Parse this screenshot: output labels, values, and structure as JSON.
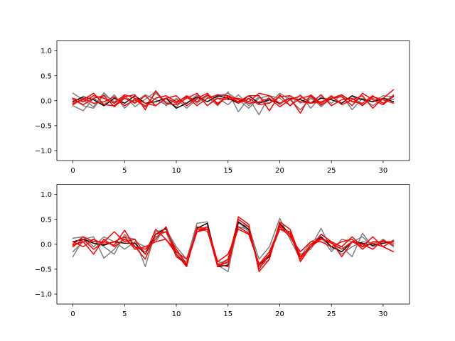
{
  "chart_data": [
    {
      "type": "line",
      "title": "",
      "xlabel": "",
      "ylabel": "",
      "xlim": [
        -1.55,
        32.55
      ],
      "ylim": [
        -1.2,
        1.2
      ],
      "xticks": [
        0,
        5,
        10,
        15,
        20,
        25,
        30
      ],
      "yticks": [
        -1.0,
        -0.5,
        0.0,
        0.5,
        1.0
      ],
      "ytick_labels": [
        "−1.0",
        "−0.5",
        "0.0",
        "0.5",
        "1.0"
      ],
      "grid": false,
      "x": [
        0,
        1,
        2,
        3,
        4,
        5,
        6,
        7,
        8,
        9,
        10,
        11,
        12,
        13,
        14,
        15,
        16,
        17,
        18,
        19,
        20,
        21,
        22,
        23,
        24,
        25,
        26,
        27,
        28,
        29,
        30,
        31
      ],
      "series": [
        {
          "color": "#808080",
          "values": [
            0.15,
            0.02,
            -0.12,
            0.16,
            -0.05,
            0.08,
            -0.03,
            0.12,
            0.02,
            -0.08,
            0.05,
            -0.15,
            0.03,
            0.08,
            -0.1,
            0.18,
            -0.22,
            0.05,
            -0.28,
            0.1,
            0.05,
            -0.1,
            0.12,
            -0.15,
            0.08,
            -0.05,
            0.12,
            -0.18,
            0.05,
            -0.02,
            0.1,
            0.08
          ]
        },
        {
          "color": "#808080",
          "values": [
            -0.1,
            -0.2,
            0.05,
            -0.08,
            0.12,
            -0.15,
            0.05,
            -0.1,
            0.15,
            -0.02,
            -0.12,
            0.08,
            -0.05,
            0.1,
            0.05,
            -0.08,
            0.12,
            -0.1,
            0.08,
            -0.05,
            0.15,
            0.02,
            -0.18,
            0.05,
            -0.1,
            0.08,
            -0.05,
            0.1,
            -0.08,
            0.05,
            -0.05,
            0.12
          ]
        },
        {
          "color": "#808080",
          "values": [
            0.05,
            -0.1,
            -0.15,
            0.12,
            -0.02,
            0.1,
            -0.12,
            0.03,
            0.18,
            -0.1,
            0.02,
            -0.05,
            0.12,
            -0.1,
            0.08,
            0.15,
            0.02,
            -0.15,
            0.05,
            0.1,
            -0.08,
            0.1,
            -0.05,
            0.08,
            -0.12,
            0.05,
            0.1,
            -0.02,
            0.05,
            -0.1,
            0.05,
            0.02
          ]
        },
        {
          "color": "#000000",
          "values": [
            -0.02,
            0.08,
            0.02,
            -0.1,
            0.05,
            -0.05,
            0.1,
            -0.05,
            -0.02,
            0.05,
            -0.15,
            -0.05,
            0.08,
            -0.02,
            0.1,
            0.05,
            -0.05,
            0.1,
            -0.05,
            0.02,
            -0.05,
            0.05,
            0.02,
            -0.05,
            0.05,
            0.02,
            -0.05,
            0.1,
            0.02,
            -0.02,
            0.05,
            -0.02
          ]
        },
        {
          "color": "#ff0000",
          "values": [
            -0.05,
            0.02,
            0.15,
            -0.08,
            -0.1,
            0.08,
            0.12,
            -0.18,
            0.2,
            -0.05,
            -0.08,
            0.05,
            0.15,
            -0.1,
            0.05,
            0.02,
            0.05,
            -0.02,
            0.15,
            0.1,
            -0.05,
            0.05,
            -0.25,
            0.12,
            -0.05,
            0.1,
            -0.08,
            0.02,
            0.1,
            -0.15,
            0.05,
            0.22
          ]
        },
        {
          "color": "#ff0000",
          "values": [
            0.02,
            -0.08,
            0.05,
            0.1,
            -0.12,
            0.05,
            -0.05,
            0.1,
            -0.1,
            0.05,
            -0.05,
            0.1,
            -0.02,
            0.12,
            -0.05,
            0.08,
            -0.02,
            0.1,
            0.1,
            -0.2,
            0.12,
            -0.1,
            0.05,
            0.1,
            -0.08,
            0.05,
            0.12,
            -0.02,
            -0.05,
            0.1,
            -0.05,
            0.08
          ]
        },
        {
          "color": "#ff0000",
          "values": [
            -0.08,
            0.05,
            -0.05,
            -0.02,
            0.08,
            -0.1,
            0.02,
            -0.12,
            0.05,
            0.1,
            -0.02,
            0.08,
            -0.1,
            0.05,
            0.12,
            0.1,
            -0.05,
            0.05,
            -0.08,
            -0.05,
            0.08,
            0.1,
            -0.02,
            -0.05,
            0.12,
            -0.1,
            0.02,
            0.05,
            -0.1,
            0.08,
            0.02,
            -0.05
          ]
        },
        {
          "color": "#ff0000",
          "values": [
            0.05,
            -0.02,
            0.1,
            0.05,
            -0.05,
            0.12,
            0.05,
            -0.05,
            -0.1,
            0.05,
            0.1,
            -0.1,
            0.05,
            0.15,
            -0.08,
            0.1,
            0.02,
            -0.05,
            -0.02,
            0.05,
            -0.12,
            0.02,
            0.1,
            -0.05,
            -0.02,
            0.05,
            0.08,
            -0.1,
            0.15,
            0.02,
            -0.08,
            0.1
          ]
        }
      ]
    },
    {
      "type": "line",
      "title": "",
      "xlabel": "",
      "ylabel": "",
      "xlim": [
        -1.55,
        32.55
      ],
      "ylim": [
        -1.2,
        1.2
      ],
      "xticks": [
        0,
        5,
        10,
        15,
        20,
        25,
        30
      ],
      "yticks": [
        -1.0,
        -0.5,
        0.0,
        0.5,
        1.0
      ],
      "ytick_labels": [
        "−1.0",
        "−0.5",
        "0.0",
        "0.5",
        "1.0"
      ],
      "grid": false,
      "x": [
        0,
        1,
        2,
        3,
        4,
        5,
        6,
        7,
        8,
        9,
        10,
        11,
        12,
        13,
        14,
        15,
        16,
        17,
        18,
        19,
        20,
        21,
        22,
        23,
        24,
        25,
        26,
        27,
        28,
        29,
        30,
        31
      ],
      "series": [
        {
          "color": "#808080",
          "values": [
            -0.25,
            0.1,
            0.15,
            -0.28,
            -0.1,
            0.15,
            0.1,
            -0.45,
            0.25,
            0.3,
            -0.05,
            -0.3,
            0.42,
            0.45,
            -0.42,
            -0.55,
            0.42,
            0.35,
            -0.3,
            -0.05,
            0.52,
            0.1,
            -0.3,
            -0.05,
            0.32,
            -0.1,
            -0.05,
            -0.25,
            0.22,
            -0.05,
            0.05,
            0.02
          ]
        },
        {
          "color": "#808080",
          "values": [
            0.12,
            0.15,
            -0.05,
            0.15,
            0.05,
            -0.1,
            0.05,
            -0.05,
            0.05,
            0.35,
            -0.15,
            -0.4,
            0.3,
            0.35,
            -0.4,
            -0.3,
            0.45,
            0.25,
            -0.4,
            -0.25,
            0.3,
            0.2,
            -0.25,
            0.05,
            0.15,
            -0.15,
            0.1,
            0.05,
            0.15,
            -0.05,
            0.1,
            -0.05
          ]
        },
        {
          "color": "#808080",
          "values": [
            -0.15,
            0.05,
            0.1,
            -0.05,
            -0.2,
            0.2,
            -0.05,
            -0.15,
            0.15,
            0.25,
            -0.25,
            -0.35,
            0.35,
            0.25,
            -0.35,
            -0.4,
            0.35,
            0.3,
            -0.45,
            -0.3,
            0.4,
            0.15,
            -0.2,
            -0.1,
            0.2,
            0.05,
            -0.2,
            -0.05,
            0.05,
            0.02,
            0.05,
            0.05
          ]
        },
        {
          "color": "#000000",
          "values": [
            0.05,
            0.1,
            0.02,
            -0.02,
            0.05,
            0.02,
            0.02,
            -0.2,
            0.2,
            0.32,
            -0.2,
            -0.42,
            0.32,
            0.42,
            -0.45,
            -0.42,
            0.45,
            0.3,
            -0.42,
            -0.25,
            0.42,
            0.2,
            -0.25,
            -0.05,
            0.15,
            -0.05,
            -0.15,
            0.05,
            0.02,
            -0.02,
            0.02,
            0.05
          ]
        },
        {
          "color": "#ff0000",
          "values": [
            0.0,
            0.15,
            0.05,
            0.05,
            -0.02,
            0.28,
            -0.05,
            -0.3,
            0.2,
            0.25,
            -0.1,
            -0.4,
            0.3,
            0.3,
            -0.45,
            -0.3,
            0.5,
            0.35,
            -0.5,
            -0.2,
            0.3,
            0.25,
            -0.35,
            -0.05,
            0.2,
            0.05,
            -0.25,
            0.05,
            -0.05,
            0.02,
            -0.05,
            0.08
          ]
        },
        {
          "color": "#ff0000",
          "values": [
            -0.05,
            0.1,
            -0.1,
            0.05,
            0.25,
            0.05,
            0.1,
            -0.2,
            0.3,
            0.1,
            -0.2,
            -0.45,
            0.35,
            0.3,
            -0.4,
            -0.45,
            0.55,
            0.4,
            -0.55,
            -0.3,
            0.45,
            0.3,
            -0.25,
            -0.05,
            0.1,
            0.05,
            -0.05,
            0.15,
            -0.05,
            0.15,
            -0.05,
            -0.15
          ]
        },
        {
          "color": "#ff0000",
          "values": [
            0.05,
            -0.05,
            0.1,
            0.0,
            0.05,
            0.15,
            -0.1,
            -0.05,
            0.05,
            0.1,
            -0.15,
            -0.3,
            0.25,
            0.35,
            -0.35,
            -0.2,
            0.3,
            0.2,
            -0.4,
            -0.15,
            0.35,
            0.15,
            -0.15,
            0.05,
            0.05,
            -0.05,
            0.05,
            0.1,
            -0.1,
            0.05,
            0.05,
            0.05
          ]
        },
        {
          "color": "#ff0000",
          "values": [
            -0.02,
            0.05,
            -0.2,
            0.1,
            -0.05,
            0.1,
            -0.05,
            -0.1,
            0.1,
            0.35,
            -0.25,
            -0.4,
            0.25,
            0.3,
            -0.45,
            -0.35,
            0.35,
            0.22,
            -0.42,
            -0.2,
            0.38,
            0.2,
            -0.3,
            0.0,
            0.12,
            0.02,
            -0.1,
            0.05,
            0.0,
            -0.1,
            0.08,
            -0.02
          ]
        }
      ]
    }
  ]
}
